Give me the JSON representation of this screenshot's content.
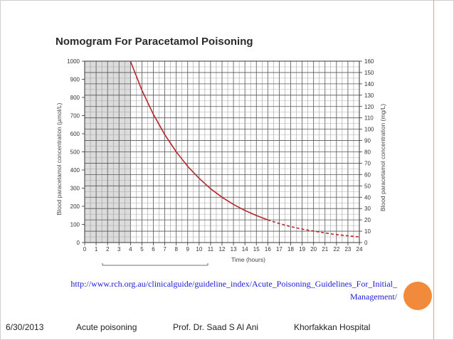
{
  "chart_data": {
    "type": "line",
    "title": "Nomogram For Paracetamol Poisoning",
    "xlabel": "Time (hours)",
    "ylabel_left": "Blood paracetamol concentration (µmol/L)",
    "ylabel_right": "Blood paracetamol concentration (mg/L)",
    "xlim": [
      0,
      24
    ],
    "ylim_left": [
      0,
      1000
    ],
    "ylim_right": [
      0,
      160
    ],
    "x_ticks": [
      "0",
      "1",
      "2",
      "3",
      "4",
      "5",
      "6",
      "7",
      "8",
      "9",
      "10",
      "11",
      "12",
      "13",
      "14",
      "15",
      "16",
      "17",
      "18",
      "19",
      "20",
      "21",
      "22",
      "23",
      "24"
    ],
    "y_ticks_left": [
      "0",
      "100",
      "200",
      "300",
      "400",
      "500",
      "600",
      "700",
      "800",
      "900",
      "1000"
    ],
    "y_ticks_right": [
      "0",
      "10",
      "20",
      "30",
      "40",
      "50",
      "60",
      "70",
      "80",
      "90",
      "100",
      "110",
      "120",
      "130",
      "140",
      "150",
      "160"
    ],
    "shaded_region_x": [
      0,
      4
    ],
    "line_color": "#b8262b",
    "series": [
      {
        "x": [
          4,
          5,
          6,
          7,
          8,
          9,
          10,
          11,
          12,
          13,
          14,
          15,
          16
        ],
        "y": [
          1000,
          840,
          707,
          595,
          500,
          420,
          354,
          297,
          250,
          210,
          177,
          149,
          125
        ],
        "style": "solid"
      },
      {
        "x": [
          16,
          17,
          18,
          19,
          20,
          21,
          22,
          23,
          24
        ],
        "y": [
          125,
          105,
          88,
          74,
          63,
          53,
          44,
          37,
          31
        ],
        "style": "dashed"
      }
    ],
    "grid": true
  },
  "slide": {
    "url": "http://www.rch.org.au/clinicalguide/guideline_index/Acute_Poisoning_Guidelines_For_Initial_ Management/",
    "date": "6/30/2013",
    "topic": "Acute poisoning",
    "author": "Prof. Dr. Saad S Al Ani",
    "hospital": "Khorfakkan Hospital"
  }
}
